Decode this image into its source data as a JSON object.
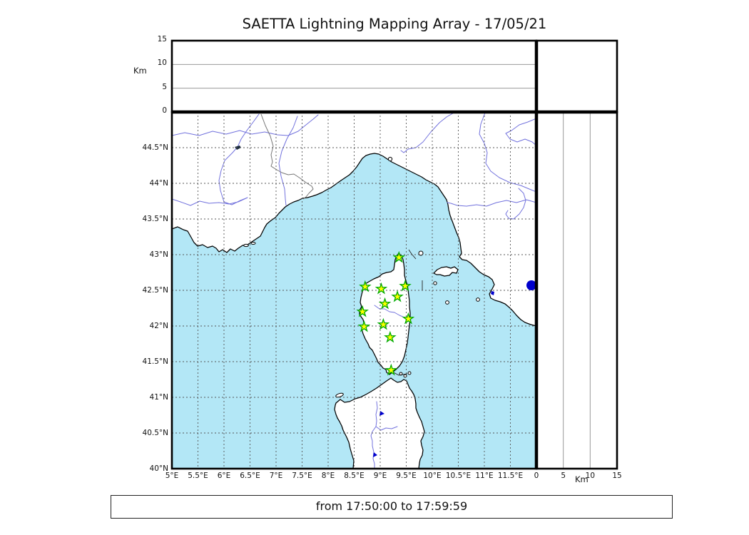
{
  "title": "SAETTA Lightning Mapping Array - 17/05/21",
  "footer": {
    "text": "from 17:50:00 to 17:59:59"
  },
  "axes": {
    "altitude_unit_label": "Km",
    "top_panel": {
      "ticks": [
        {
          "label": "0",
          "km": 0
        },
        {
          "label": "5",
          "km": 5
        },
        {
          "label": "10",
          "km": 10
        },
        {
          "label": "15",
          "km": 15
        }
      ],
      "gridlines_km": [
        5,
        10
      ]
    },
    "right_panel": {
      "unit_label": "Km",
      "ticks": [
        {
          "label": "0",
          "km": 0
        },
        {
          "label": "5",
          "km": 5
        },
        {
          "label": "10",
          "km": 10
        },
        {
          "label": "15",
          "km": 15
        }
      ],
      "gridlines_km": [
        5,
        10
      ]
    },
    "lon_ticks": [
      {
        "label": "5°E",
        "deg": 5.0
      },
      {
        "label": "5.5°E",
        "deg": 5.5
      },
      {
        "label": "6°E",
        "deg": 6.0
      },
      {
        "label": "6.5°E",
        "deg": 6.5
      },
      {
        "label": "7°E",
        "deg": 7.0
      },
      {
        "label": "7.5°E",
        "deg": 7.5
      },
      {
        "label": "8°E",
        "deg": 8.0
      },
      {
        "label": "8.5°E",
        "deg": 8.5
      },
      {
        "label": "9°E",
        "deg": 9.0
      },
      {
        "label": "9.5°E",
        "deg": 9.5
      },
      {
        "label": "10°E",
        "deg": 10.0
      },
      {
        "label": "10.5°E",
        "deg": 10.5
      },
      {
        "label": "11°E",
        "deg": 11.0
      },
      {
        "label": "11.5°E",
        "deg": 11.5
      }
    ],
    "lat_ticks": [
      {
        "label": "44.5°N",
        "deg": 44.5
      },
      {
        "label": "44°N",
        "deg": 44.0
      },
      {
        "label": "43.5°N",
        "deg": 43.5
      },
      {
        "label": "43°N",
        "deg": 43.0
      },
      {
        "label": "42.5°N",
        "deg": 42.5
      },
      {
        "label": "42°N",
        "deg": 42.0
      },
      {
        "label": "41.5°N",
        "deg": 41.5
      },
      {
        "label": "41°N",
        "deg": 41.0
      },
      {
        "label": "40.5°N",
        "deg": 40.5
      },
      {
        "label": "40°N",
        "deg": 40.0
      }
    ]
  },
  "chart_data": {
    "type": "scatter",
    "title": "SAETTA Lightning Mapping Array - 17/05/21",
    "time_window": {
      "from": "17:50:00",
      "to": "17:59:59"
    },
    "map_extent": {
      "lon_min": 5,
      "lon_max": 12,
      "lat_min": 40,
      "lat_max": 45
    },
    "altitude_range_km": [
      0,
      15
    ],
    "grid": "0.5 degree dashed graticule on map; 5 km gridlines on altitude panels",
    "legend_position": "none",
    "stations_marker": "star",
    "stations": [
      {
        "lon": 9.36,
        "lat": 42.96
      },
      {
        "lon": 8.71,
        "lat": 42.55
      },
      {
        "lon": 9.02,
        "lat": 42.52
      },
      {
        "lon": 9.48,
        "lat": 42.56
      },
      {
        "lon": 9.33,
        "lat": 42.41
      },
      {
        "lon": 9.09,
        "lat": 42.31
      },
      {
        "lon": 8.66,
        "lat": 42.2
      },
      {
        "lon": 9.54,
        "lat": 42.1
      },
      {
        "lon": 8.69,
        "lat": 41.99
      },
      {
        "lon": 9.06,
        "lat": 42.02
      },
      {
        "lon": 9.19,
        "lat": 41.84
      },
      {
        "lon": 9.21,
        "lat": 41.38
      }
    ],
    "lake_dot": {
      "lon": 11.9,
      "lat": 42.57
    }
  },
  "colors": {
    "sea": "#b3e7f6",
    "land": "#ffffff",
    "coastline": "#000000",
    "river": "#7272dd",
    "country_border": "#777777",
    "map_grid": "#555555",
    "panel_grid": "#999999",
    "station_fill": "#ffff00",
    "station_stroke": "#00aa00",
    "lake": "#0000cc"
  }
}
